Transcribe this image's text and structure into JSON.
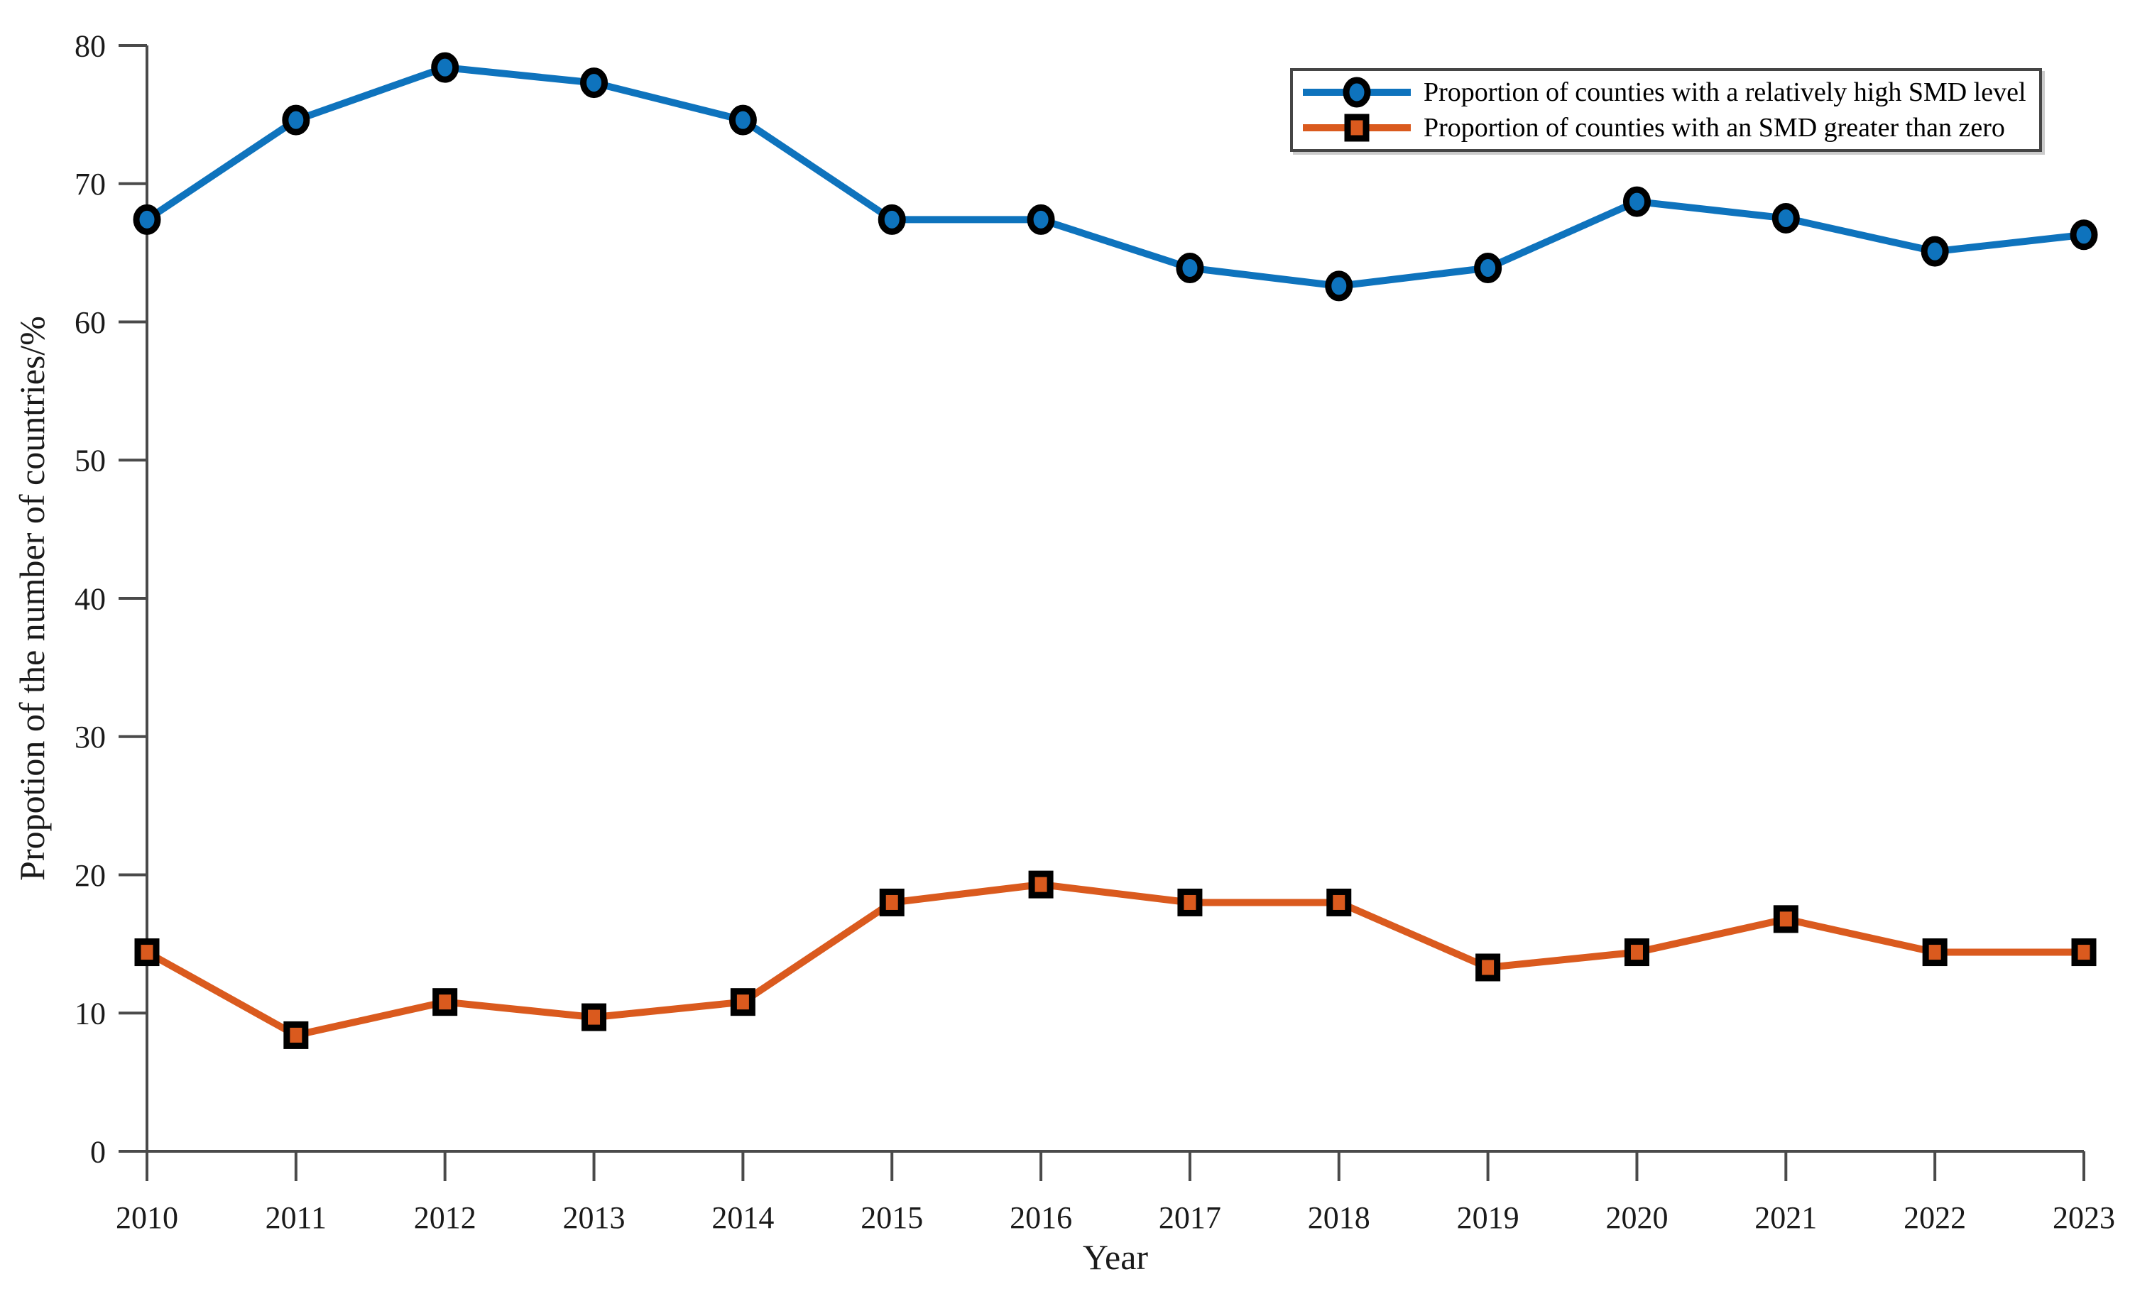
{
  "figure": {
    "xlabel": "Year",
    "ylabel": "Propotion of the number of countries/%"
  },
  "chart_data": {
    "type": "line",
    "x": [
      2010,
      2011,
      2012,
      2013,
      2014,
      2015,
      2016,
      2017,
      2018,
      2019,
      2020,
      2021,
      2022,
      2023
    ],
    "series": [
      {
        "name": "Proportion of counties with a relatively high SMD level",
        "values": [
          67.4,
          74.6,
          78.4,
          77.3,
          74.6,
          67.4,
          67.4,
          63.9,
          62.6,
          63.9,
          68.7,
          67.5,
          65.1,
          66.3
        ],
        "color": "#0e73bd",
        "marker": "circle",
        "marker_edge_color": "#000000"
      },
      {
        "name": "Proportion of counties with an SMD greater than zero",
        "values": [
          14.4,
          8.4,
          10.8,
          9.7,
          10.8,
          18.0,
          19.3,
          18.0,
          18.0,
          13.3,
          14.4,
          16.8,
          14.4,
          14.4
        ],
        "color": "#da5a1e",
        "marker": "square",
        "marker_edge_color": "#000000"
      }
    ],
    "title": "",
    "xlabel": "Year",
    "ylabel": "Propotion of the number of countries/%",
    "ylim": [
      0,
      80
    ],
    "ytick_step": 10,
    "grid": false,
    "legend_position": "top-right",
    "axis_color": "#4a4a4a",
    "text_color": "#1a1a1a"
  }
}
